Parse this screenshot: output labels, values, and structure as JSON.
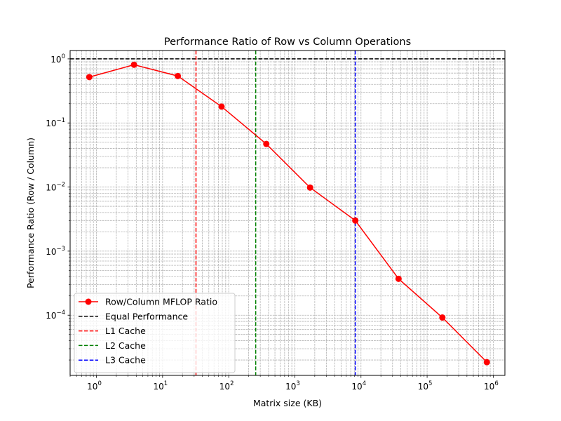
{
  "chart_data": {
    "type": "line",
    "title": "Performance Ratio of Row vs Column Operations",
    "xlabel": "Matrix size (KB)",
    "ylabel": "Performance Ratio (Row / Column)",
    "xscale": "log",
    "yscale": "log",
    "xlim": [
      0.4,
      1500000
    ],
    "ylim": [
      1.15e-05,
      1.35
    ],
    "grid": "on (major and minor, dashed)",
    "legend_location": "lower left",
    "x_ticks": [
      {
        "value": 1,
        "base": "10",
        "exp": "0"
      },
      {
        "value": 10,
        "base": "10",
        "exp": "1"
      },
      {
        "value": 100,
        "base": "10",
        "exp": "2"
      },
      {
        "value": 1000,
        "base": "10",
        "exp": "3"
      },
      {
        "value": 10000,
        "base": "10",
        "exp": "4"
      },
      {
        "value": 100000,
        "base": "10",
        "exp": "5"
      },
      {
        "value": 1000000,
        "base": "10",
        "exp": "6"
      }
    ],
    "y_ticks": [
      {
        "value": 0.0001,
        "base": "10",
        "exp": "−4"
      },
      {
        "value": 0.001,
        "base": "10",
        "exp": "−3"
      },
      {
        "value": 0.01,
        "base": "10",
        "exp": "−2"
      },
      {
        "value": 0.1,
        "base": "10",
        "exp": "−1"
      },
      {
        "value": 1,
        "base": "10",
        "exp": "0"
      }
    ],
    "series": [
      {
        "name": "Row/Column MFLOP Ratio",
        "color": "#ff0000",
        "style": "line-with-circles",
        "x": [
          0.78,
          3.7,
          17,
          78,
          370,
          1700,
          8200,
          37000,
          170000,
          800000
        ],
        "y": [
          0.52,
          0.81,
          0.54,
          0.18,
          0.047,
          0.0098,
          0.003,
          0.00037,
          9.2e-05,
          1.85e-05
        ]
      }
    ],
    "reference_lines": [
      {
        "name": "Equal Performance",
        "orientation": "horizontal",
        "value": 1,
        "color": "#000000"
      },
      {
        "name": "L1 Cache",
        "orientation": "vertical",
        "value": 32,
        "color": "#ff0000"
      },
      {
        "name": "L2 Cache",
        "orientation": "vertical",
        "value": 256,
        "color": "#008000"
      },
      {
        "name": "L3 Cache",
        "orientation": "vertical",
        "value": 8192,
        "color": "#0000ff"
      }
    ]
  }
}
